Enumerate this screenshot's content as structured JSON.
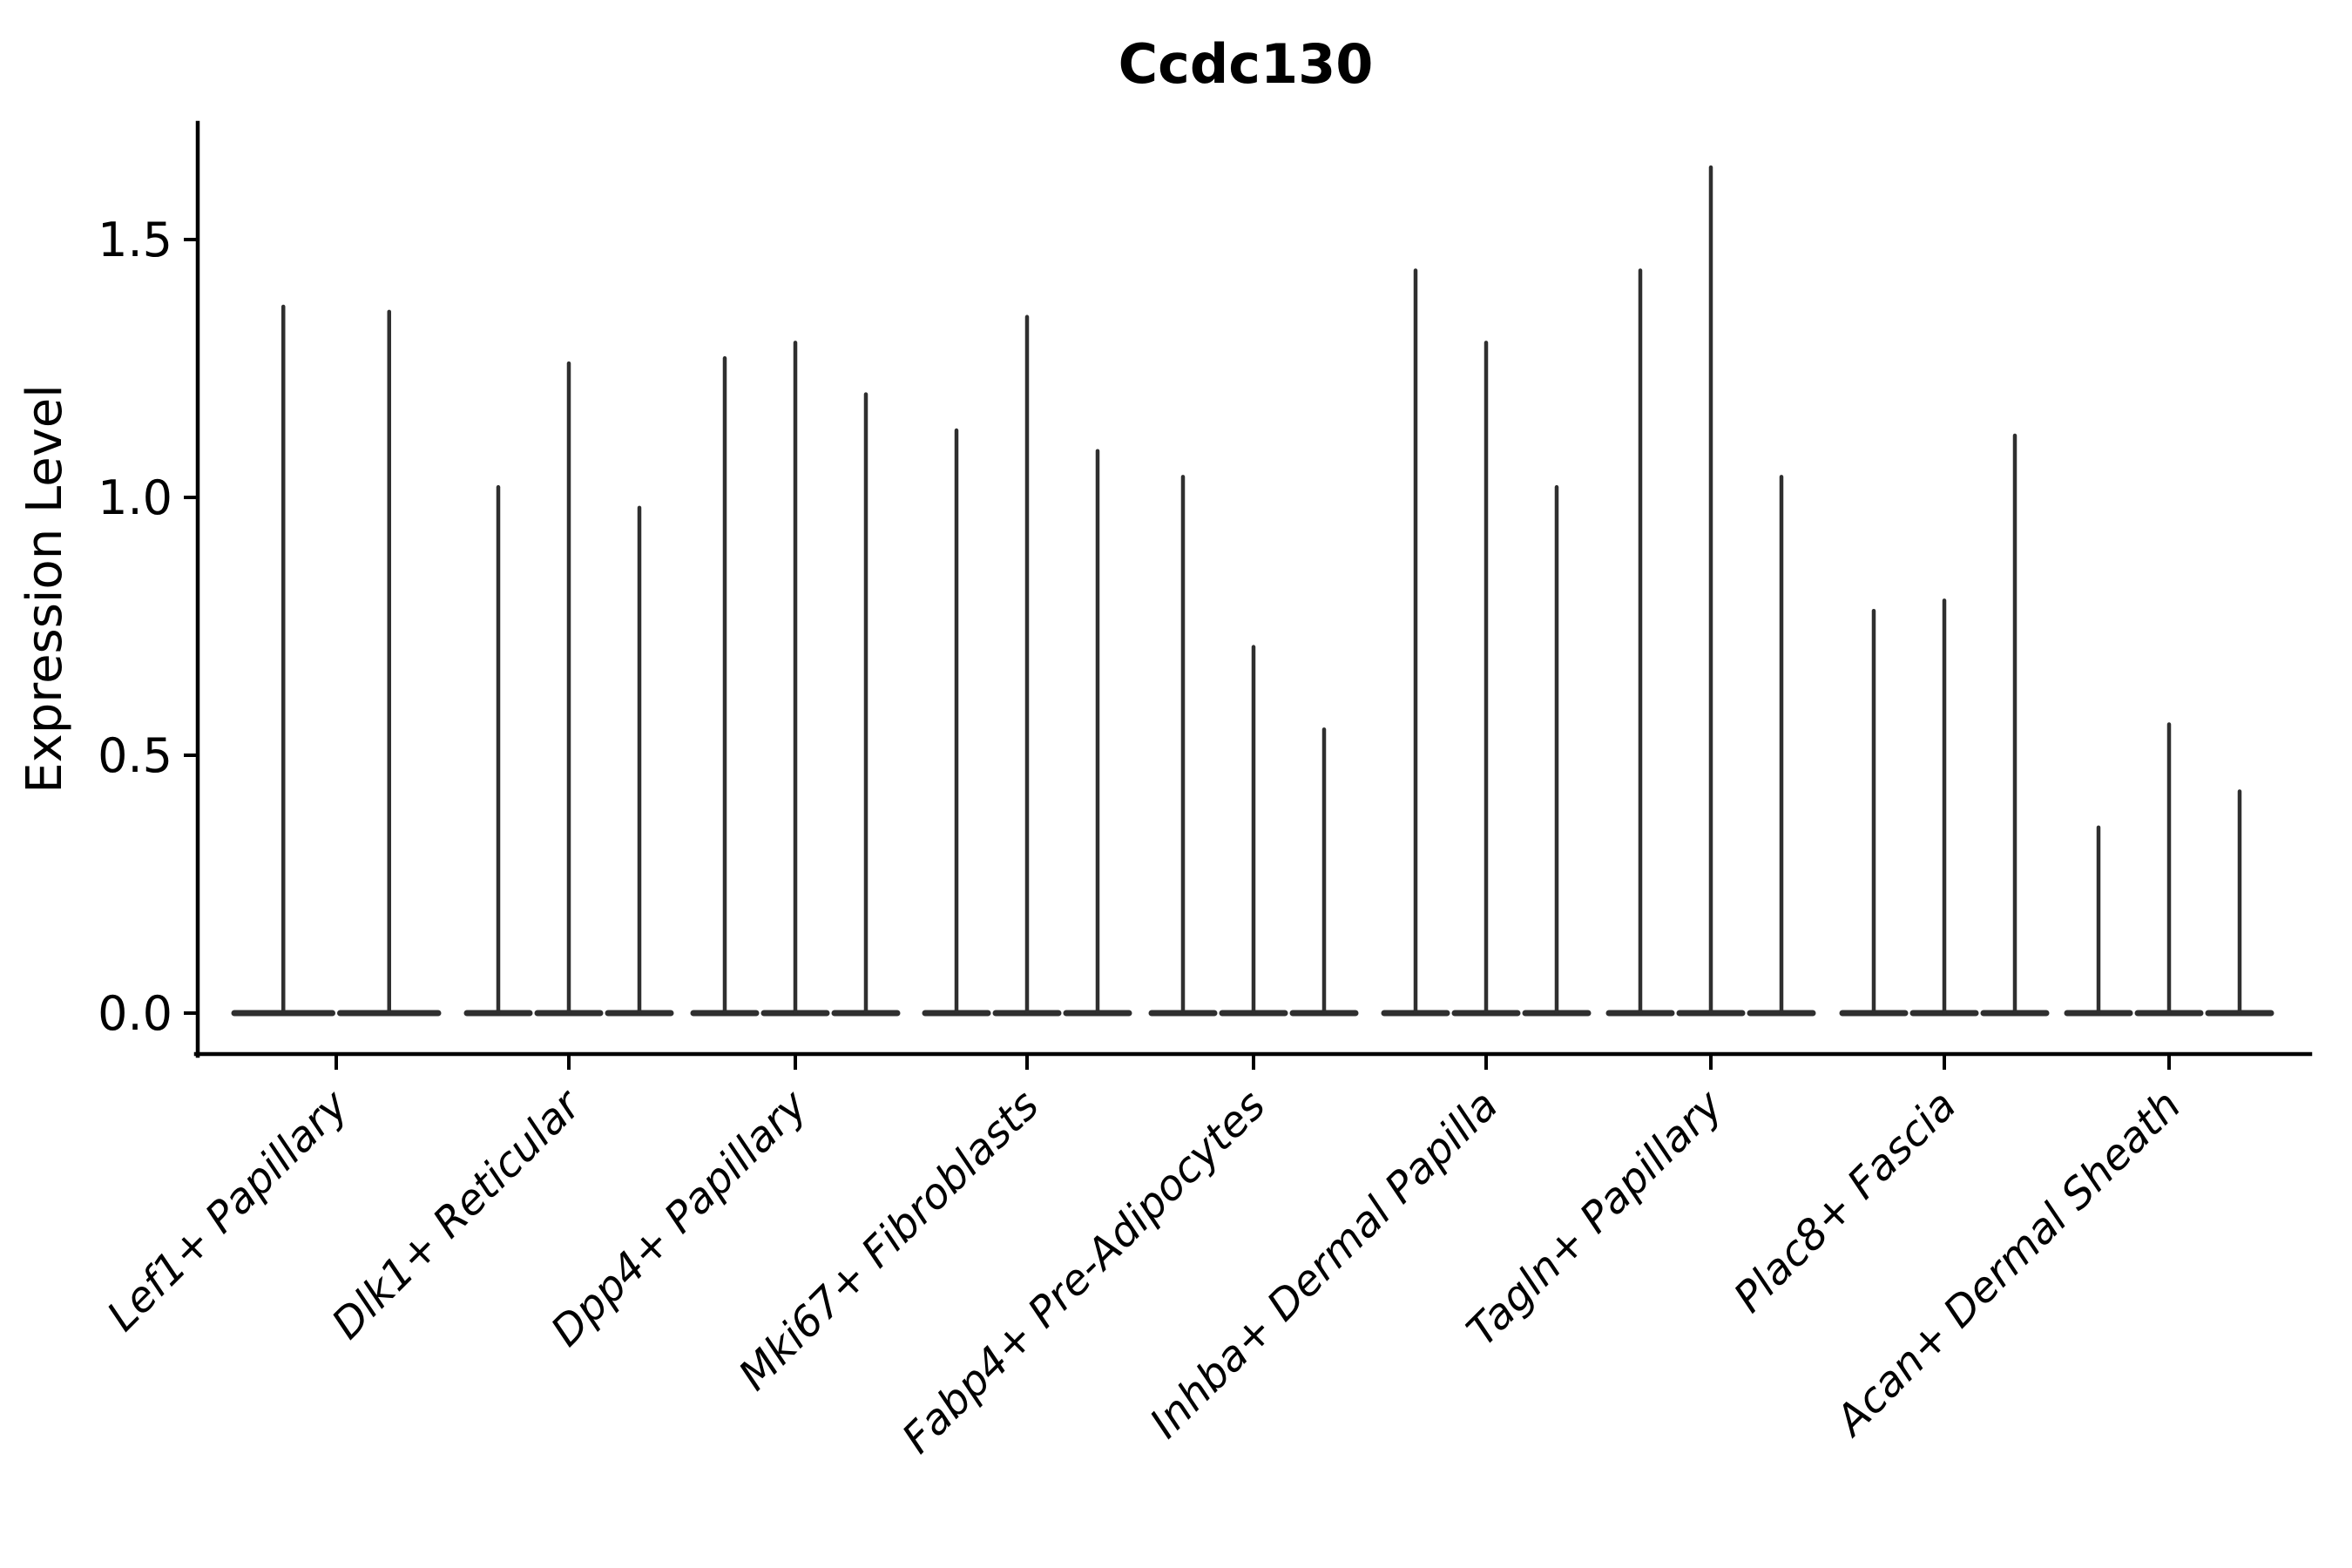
{
  "chart_data": {
    "type": "violin",
    "title": "Ccdc130",
    "xlabel": "",
    "ylabel": "Expression Level",
    "yticks": [
      "0.0",
      "0.5",
      "1.0",
      "1.5"
    ],
    "ylim": [
      -0.08,
      1.73
    ],
    "grid": false,
    "legend_position": "none",
    "categories": [
      "Lef1+ Papillary",
      "Dlk1+ Reticular",
      "Dpp4+ Papillary",
      "Mki67+ Fibroblasts",
      "Fabp4+ Pre-Adipocytes",
      "Inhba+ Dermal Papilla",
      "Tagln+ Papillary",
      "Plac8+ Fascia",
      "Acan+ Dermal Sheath"
    ],
    "series": [
      {
        "category": "Lef1+ Papillary",
        "violin_max_values": [
          1.37,
          1.36
        ]
      },
      {
        "category": "Dlk1+ Reticular",
        "violin_max_values": [
          1.02,
          1.26,
          0.98
        ]
      },
      {
        "category": "Dpp4+ Papillary",
        "violin_max_values": [
          1.27,
          1.3,
          1.2
        ]
      },
      {
        "category": "Mki67+ Fibroblasts",
        "violin_max_values": [
          1.13,
          1.35,
          1.09
        ]
      },
      {
        "category": "Fabp4+ Pre-Adipocytes",
        "violin_max_values": [
          1.04,
          0.71,
          0.55
        ]
      },
      {
        "category": "Inhba+ Dermal Papilla",
        "violin_max_values": [
          1.44,
          1.3,
          1.02
        ]
      },
      {
        "category": "Tagln+ Papillary",
        "violin_max_values": [
          1.44,
          1.64,
          1.04
        ]
      },
      {
        "category": "Plac8+ Fascia",
        "violin_max_values": [
          0.78,
          0.8,
          1.12
        ]
      },
      {
        "category": "Acan+ Dermal Sheath",
        "violin_max_values": [
          0.36,
          0.56,
          0.43
        ]
      }
    ],
    "style": {
      "violin_color": "#2f2f2f",
      "axis_color": "#000000",
      "background_color": "#ffffff",
      "x_tick_label_rotation_deg": 45,
      "x_tick_labels_italic": true,
      "violin_shape": "near-zero-width spike from 0 to max with wide flat base at 0"
    }
  }
}
